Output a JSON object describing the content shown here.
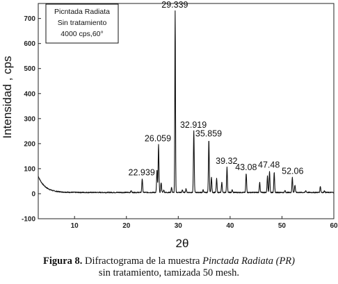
{
  "chart_data": {
    "type": "line",
    "xlabel": "2θ",
    "ylabel": "Intensidad , cps",
    "xlim": [
      3,
      60
    ],
    "ylim": [
      -100,
      760
    ],
    "x_ticks": [
      "10",
      "20",
      "30",
      "40",
      "50",
      "60"
    ],
    "y_ticks": [
      "-100",
      "0",
      "100",
      "200",
      "300",
      "400",
      "500",
      "600",
      "700"
    ],
    "grid": false,
    "legend_box": {
      "lines": [
        "Picntada Radiata",
        "Sin tratamiento",
        "4000 cps,60°"
      ],
      "placement": "top-left"
    },
    "peak_labels": [
      {
        "label": "22.939",
        "x": 22.939,
        "y": 60
      },
      {
        "label": "26.059",
        "x": 26.059,
        "y": 195
      },
      {
        "label": "29.339",
        "x": 29.339,
        "y": 730
      },
      {
        "label": "32.919",
        "x": 32.919,
        "y": 250
      },
      {
        "label": "35.859",
        "x": 35.859,
        "y": 215
      },
      {
        "label": "39.32",
        "x": 39.32,
        "y": 105
      },
      {
        "label": "43.08",
        "x": 43.08,
        "y": 80
      },
      {
        "label": "47.48",
        "x": 47.48,
        "y": 90
      },
      {
        "label": "52.06",
        "x": 52.06,
        "y": 65
      }
    ],
    "series": [
      {
        "line_color": "#111111",
        "baseline": 5,
        "low_angle_hump": {
          "start": 3,
          "value_at_start": 70,
          "decay": 1.3
        },
        "peaks": [
          {
            "x": 20.9,
            "y": 12
          },
          {
            "x": 23.05,
            "y": 60
          },
          {
            "x": 25.9,
            "y": 95
          },
          {
            "x": 26.2,
            "y": 195
          },
          {
            "x": 26.7,
            "y": 45
          },
          {
            "x": 27.2,
            "y": 15
          },
          {
            "x": 28.7,
            "y": 25
          },
          {
            "x": 29.4,
            "y": 730
          },
          {
            "x": 30.8,
            "y": 15
          },
          {
            "x": 31.5,
            "y": 20
          },
          {
            "x": 33.0,
            "y": 250
          },
          {
            "x": 34.8,
            "y": 15
          },
          {
            "x": 35.9,
            "y": 215
          },
          {
            "x": 36.4,
            "y": 65
          },
          {
            "x": 37.4,
            "y": 60
          },
          {
            "x": 38.4,
            "y": 45
          },
          {
            "x": 39.4,
            "y": 105
          },
          {
            "x": 40.4,
            "y": 15
          },
          {
            "x": 43.1,
            "y": 80
          },
          {
            "x": 45.7,
            "y": 45
          },
          {
            "x": 47.2,
            "y": 70
          },
          {
            "x": 47.6,
            "y": 90
          },
          {
            "x": 48.5,
            "y": 85
          },
          {
            "x": 50.6,
            "y": 12
          },
          {
            "x": 52.0,
            "y": 65
          },
          {
            "x": 52.5,
            "y": 35
          },
          {
            "x": 54.6,
            "y": 12
          },
          {
            "x": 57.4,
            "y": 30
          },
          {
            "x": 58.2,
            "y": 12
          }
        ]
      }
    ]
  },
  "caption": {
    "lead": "Figura 8.",
    "line1_text": " Difractograma de la muestra ",
    "line1_italic": "Pinctada Radiata (PR)",
    "line2": "sin tratamiento, tamizada 50 mesh."
  }
}
